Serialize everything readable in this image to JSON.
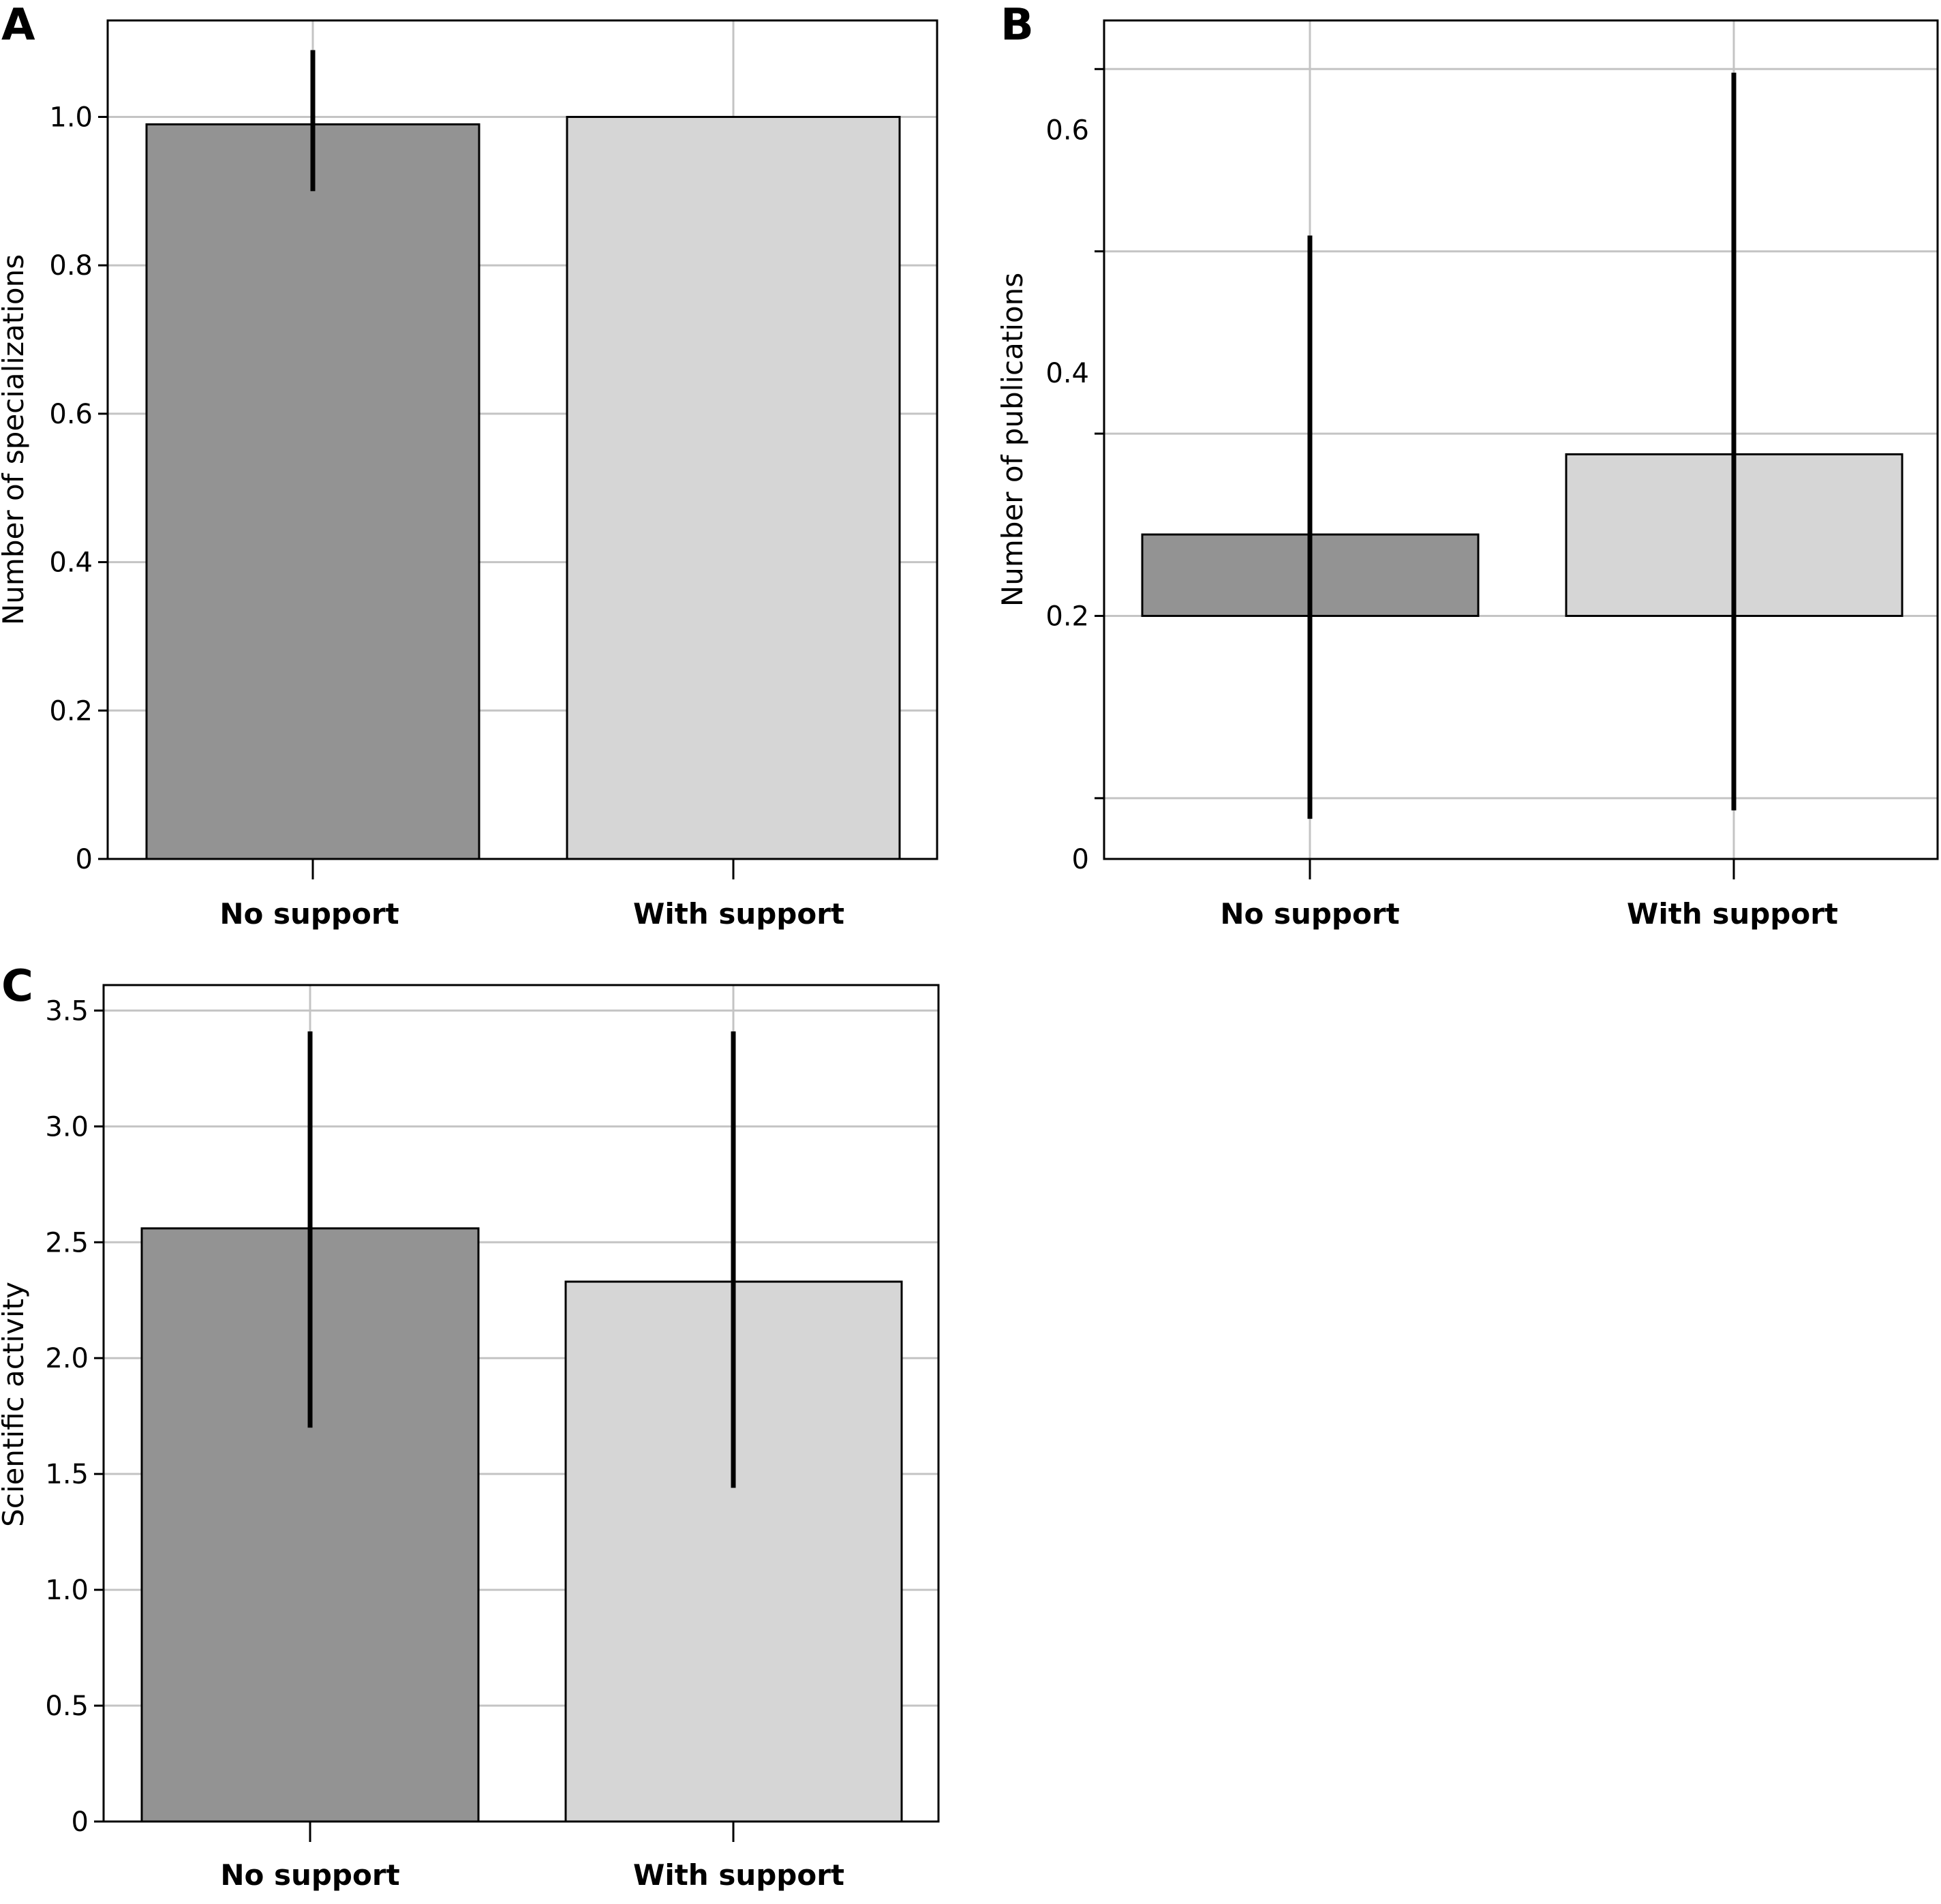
{
  "colors": {
    "no_support": "#939393",
    "with_support": "#d6d6d6",
    "grid": "#c4c4c4",
    "frame": "#000000",
    "errorbar": "#000000"
  },
  "chart_data": [
    {
      "panel": "A",
      "type": "bar",
      "categories": [
        "No support",
        "With support"
      ],
      "values": [
        0.99,
        1.0
      ],
      "error_low": [
        0.9,
        1.0
      ],
      "error_high": [
        1.09,
        1.0
      ],
      "ylabel": "Number of specializations",
      "ylim": [
        0,
        1.13
      ],
      "yticks": [
        0,
        0.2,
        0.4,
        0.6,
        0.8,
        1.0
      ],
      "ytick_labels": [
        "0",
        "0.2",
        "0.4",
        "0.6",
        "0.8",
        "1.0"
      ],
      "grid": true
    },
    {
      "panel": "B",
      "type": "bar",
      "categories": [
        "No support",
        "With support"
      ],
      "values": [
        0.267,
        0.333
      ],
      "bar_base": 0.2,
      "error_low": [
        0.033,
        0.04
      ],
      "error_high": [
        0.513,
        0.647
      ],
      "ylabel": "Number of publications",
      "ylim": [
        0,
        0.69
      ],
      "yticks": [
        0,
        0.2,
        0.4,
        0.6
      ],
      "ytick_labels": [
        "0",
        "0.2",
        "0.4",
        "0.6"
      ],
      "minor_yticks": [
        0.05,
        0.2,
        0.35,
        0.5,
        0.65
      ],
      "grid": true
    },
    {
      "panel": "C",
      "type": "bar",
      "categories": [
        "No support",
        "With support"
      ],
      "values": [
        2.56,
        2.33
      ],
      "error_low": [
        1.7,
        1.44
      ],
      "error_high": [
        3.41,
        3.41
      ],
      "ylabel": "Scientific activity",
      "ylim": [
        0,
        3.61
      ],
      "yticks": [
        0,
        0.5,
        1.0,
        1.5,
        2.0,
        2.5,
        3.0,
        3.5
      ],
      "ytick_labels": [
        "0",
        "0.5",
        "1.0",
        "1.5",
        "2.0",
        "2.5",
        "3.0",
        "3.5"
      ],
      "grid": true
    }
  ]
}
